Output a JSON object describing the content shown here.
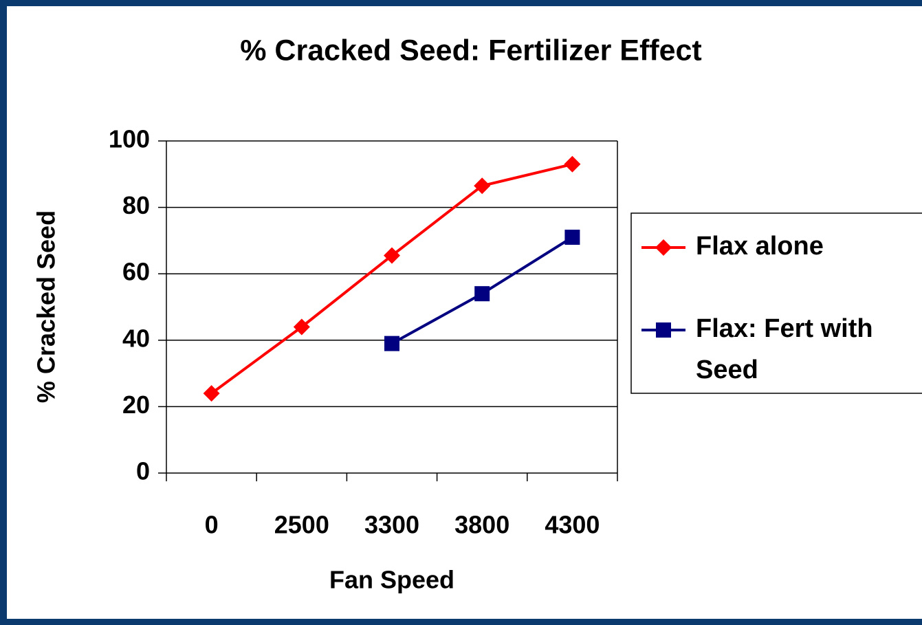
{
  "chart_data": {
    "type": "line",
    "title": "% Cracked Seed: Fertilizer Effect",
    "x_label": "Fan Speed",
    "y_label": "% Cracked Seed",
    "categories": [
      "0",
      "2500",
      "3300",
      "3800",
      "4300"
    ],
    "series": [
      {
        "name": "Flax alone",
        "color": "#ff0000",
        "marker": "diamond",
        "values": [
          24,
          44,
          65.5,
          86.5,
          93
        ]
      },
      {
        "name": "Flax: Fert with Seed",
        "color": "#000080",
        "marker": "square",
        "values": [
          null,
          null,
          39,
          54,
          71
        ]
      }
    ],
    "ylim": [
      0,
      100
    ],
    "yticks": [
      0,
      20,
      40,
      60,
      80,
      100
    ],
    "grid": true,
    "legend": "right"
  }
}
